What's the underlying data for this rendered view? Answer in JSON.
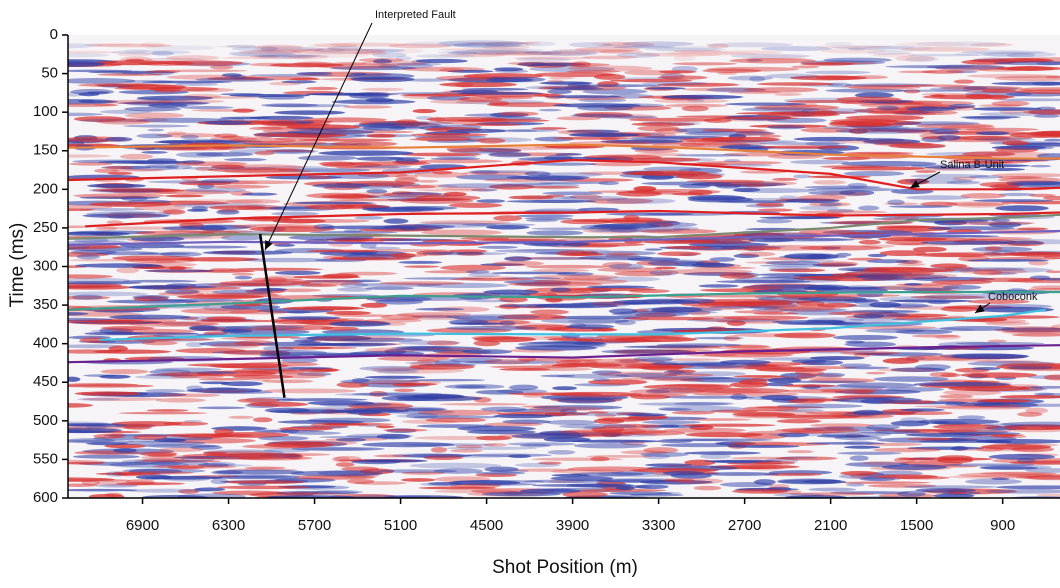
{
  "chart_data": {
    "type": "seismic",
    "xlabel": "Shot Position (m)",
    "ylabel": "Time (ms)",
    "xlim": [
      7420,
      500
    ],
    "xticks": [
      6900,
      6300,
      5700,
      5100,
      4500,
      3900,
      3300,
      2700,
      2100,
      1500,
      900
    ],
    "ylim": [
      600,
      0
    ],
    "yticks": [
      0,
      50,
      100,
      150,
      200,
      250,
      300,
      350,
      400,
      450,
      500,
      550,
      600
    ],
    "series": [
      {
        "color": "#e8803a",
        "x": [
          7420,
          6300,
          5100,
          3900,
          3300,
          2100,
          900,
          500
        ],
        "values": [
          146,
          143,
          146,
          142,
          145,
          155,
          160,
          160
        ]
      },
      {
        "color": "#e02020",
        "x": [
          7420,
          6300,
          5100,
          3900,
          3300,
          2100,
          1500,
          900,
          500
        ],
        "values": [
          188,
          183,
          178,
          162,
          165,
          180,
          200,
          200,
          198
        ]
      },
      {
        "color": "#e02020",
        "x": [
          7300,
          6300,
          5700,
          5100,
          3900,
          3300,
          2100,
          900,
          500
        ],
        "values": [
          248,
          238,
          235,
          232,
          230,
          228,
          234,
          232,
          230
        ]
      },
      {
        "color": "#7a8a70",
        "x": [
          7420,
          6300,
          5100,
          3900,
          3300,
          2100,
          1500,
          900,
          500
        ],
        "values": [
          264,
          258,
          260,
          262,
          262,
          250,
          240,
          237,
          233
        ]
      },
      {
        "color": "#7060c0",
        "x": [
          7420,
          6300,
          5100,
          3900,
          2700,
          1500,
          500
        ],
        "values": [
          272,
          268,
          270,
          268,
          262,
          258,
          254
        ]
      },
      {
        "color": "#3aa090",
        "x": [
          7420,
          6300,
          5100,
          3900,
          2700,
          1500,
          900,
          500
        ],
        "values": [
          356,
          348,
          338,
          340,
          335,
          333,
          333,
          333
        ]
      },
      {
        "color": "#40c0e0",
        "x": [
          7200,
          6300,
          5100,
          3900,
          3300,
          2700,
          2100,
          1500,
          900,
          600
        ],
        "values": [
          395,
          390,
          387,
          388,
          388,
          384,
          380,
          372,
          364,
          356
        ]
      },
      {
        "color": "#6a2090",
        "x": [
          7420,
          6300,
          5100,
          3900,
          2700,
          1500,
          900,
          500
        ],
        "values": [
          424,
          420,
          415,
          418,
          410,
          405,
          403,
          402
        ]
      }
    ],
    "fault": {
      "x": [
        6080,
        5910
      ],
      "values": [
        258,
        470
      ]
    },
    "annotations": [
      "Interpreted Fault",
      "Salina B-Unit",
      "Coboconk"
    ]
  }
}
